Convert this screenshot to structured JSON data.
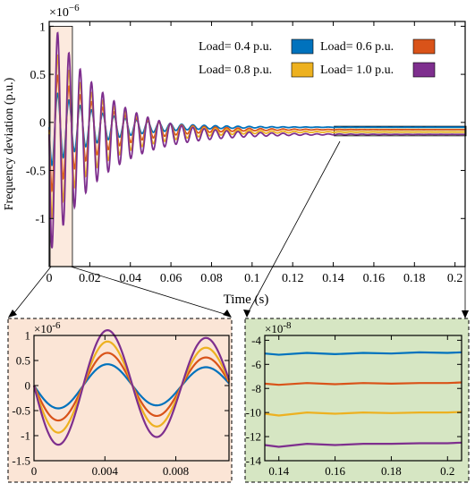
{
  "chart_data": [
    {
      "type": "line",
      "panel": "main",
      "xlabel": "Time (s)",
      "ylabel": "Frequency deviation (p.u.)",
      "y_exponent": "×10",
      "y_exponent_power": "−6",
      "xlim": [
        0,
        0.205
      ],
      "ylim": [
        -1.5,
        1.05
      ],
      "x_ticks": [
        "0",
        "0.02",
        "0.04",
        "0.06",
        "0.08",
        "0.1",
        "0.12",
        "0.14",
        "0.16",
        "0.18",
        "0.2"
      ],
      "x_tick_values": [
        0,
        0.02,
        0.04,
        0.06,
        0.08,
        0.1,
        0.12,
        0.14,
        0.16,
        0.18,
        0.2
      ],
      "y_ticks": [
        "1",
        "0.5",
        "0",
        "-0.5",
        "-1"
      ],
      "y_tick_values": [
        1,
        0.5,
        0,
        -0.5,
        -1
      ],
      "grid": false,
      "legend_position": "top-right",
      "legend": [
        {
          "label": "Load= 0.4 p.u.",
          "color": "#0072BD"
        },
        {
          "label": "Load= 0.6 p.u.",
          "color": "#D95319"
        },
        {
          "label": "Load= 0.8 p.u.",
          "color": "#EDB120"
        },
        {
          "label": "Load= 1.0 p.u.",
          "color": "#7E2F8E"
        }
      ],
      "series": [
        {
          "name": "Load= 0.4 p.u.",
          "color": "#0072BD",
          "amplitude": 0.4,
          "steady_state": -0.05
        },
        {
          "name": "Load= 0.6 p.u.",
          "color": "#D95319",
          "amplitude": 0.6,
          "steady_state": -0.075
        },
        {
          "name": "Load= 0.8 p.u.",
          "color": "#EDB120",
          "amplitude": 0.8,
          "steady_state": -0.1
        },
        {
          "name": "Load= 1.0 p.u.",
          "color": "#7E2F8E",
          "amplitude": 1.0,
          "steady_state": -0.125
        }
      ],
      "oscillation_frequency_hz": 180,
      "decay_time_constant_s": 0.025,
      "zoom_regions": [
        {
          "x": [
            0,
            0.011
          ],
          "y": [
            -1.5,
            1.0
          ],
          "color": "#fbe5d6"
        },
        {
          "x": [
            0.14,
            0.205
          ],
          "y": [
            -0.14,
            -0.04
          ],
          "color": "#d6e6c3"
        }
      ]
    },
    {
      "type": "line",
      "panel": "zoom-left",
      "y_exponent": "×10",
      "y_exponent_power": "-6",
      "background": "#fbe5d6",
      "xlim": [
        0,
        0.011
      ],
      "ylim": [
        -1.5,
        1.0
      ],
      "x_ticks": [
        "0",
        "0.004",
        "0.008"
      ],
      "x_tick_values": [
        0,
        0.004,
        0.008
      ],
      "y_ticks": [
        "1",
        "0.5",
        "0",
        "-0.5",
        "-1",
        "-1.5"
      ],
      "y_tick_values": [
        1,
        0.5,
        0,
        -0.5,
        -1,
        -1.5
      ],
      "series": [
        {
          "name": "Load= 0.4 p.u.",
          "color": "#0072BD",
          "amplitude": 0.47
        },
        {
          "name": "Load= 0.6 p.u.",
          "color": "#D95319",
          "amplitude": 0.72
        },
        {
          "name": "Load= 0.8 p.u.",
          "color": "#EDB120",
          "amplitude": 0.97
        },
        {
          "name": "Load= 1.0 p.u.",
          "color": "#7E2F8E",
          "amplitude": 1.22
        }
      ]
    },
    {
      "type": "line",
      "panel": "zoom-right",
      "y_exponent": "×10",
      "y_exponent_power": "-8",
      "background": "#d6e6c3",
      "xlim": [
        0.135,
        0.205
      ],
      "ylim": [
        -14,
        -3.6
      ],
      "x_ticks": [
        "0.14",
        "0.16",
        "0.18",
        "0.2"
      ],
      "x_tick_values": [
        0.14,
        0.16,
        0.18,
        0.2
      ],
      "y_ticks": [
        "-4",
        "-6",
        "-8",
        "-10",
        "-12",
        "-14"
      ],
      "y_tick_values": [
        -4,
        -6,
        -8,
        -10,
        -12,
        -14
      ],
      "series": [
        {
          "name": "Load= 0.4 p.u.",
          "color": "#0072BD",
          "values_x": [
            0.135,
            0.14,
            0.15,
            0.16,
            0.17,
            0.18,
            0.19,
            0.2,
            0.205
          ],
          "values_y": [
            -5.1,
            -5.2,
            -5.05,
            -5.15,
            -5.05,
            -5.1,
            -5.0,
            -5.05,
            -5.0
          ]
        },
        {
          "name": "Load= 0.6 p.u.",
          "color": "#D95319",
          "values_x": [
            0.135,
            0.14,
            0.15,
            0.16,
            0.17,
            0.18,
            0.19,
            0.2,
            0.205
          ],
          "values_y": [
            -7.6,
            -7.7,
            -7.55,
            -7.65,
            -7.55,
            -7.6,
            -7.55,
            -7.55,
            -7.5
          ]
        },
        {
          "name": "Load= 0.8 p.u.",
          "color": "#EDB120",
          "values_x": [
            0.135,
            0.14,
            0.15,
            0.16,
            0.17,
            0.18,
            0.19,
            0.2,
            0.205
          ],
          "values_y": [
            -10.1,
            -10.25,
            -10.0,
            -10.1,
            -10.0,
            -10.05,
            -10.0,
            -10.0,
            -9.95
          ]
        },
        {
          "name": "Load= 1.0 p.u.",
          "color": "#7E2F8E",
          "values_x": [
            0.135,
            0.14,
            0.15,
            0.16,
            0.17,
            0.18,
            0.19,
            0.2,
            0.205
          ],
          "values_y": [
            -12.7,
            -12.85,
            -12.6,
            -12.7,
            -12.6,
            -12.6,
            -12.55,
            -12.55,
            -12.5
          ]
        }
      ]
    }
  ]
}
